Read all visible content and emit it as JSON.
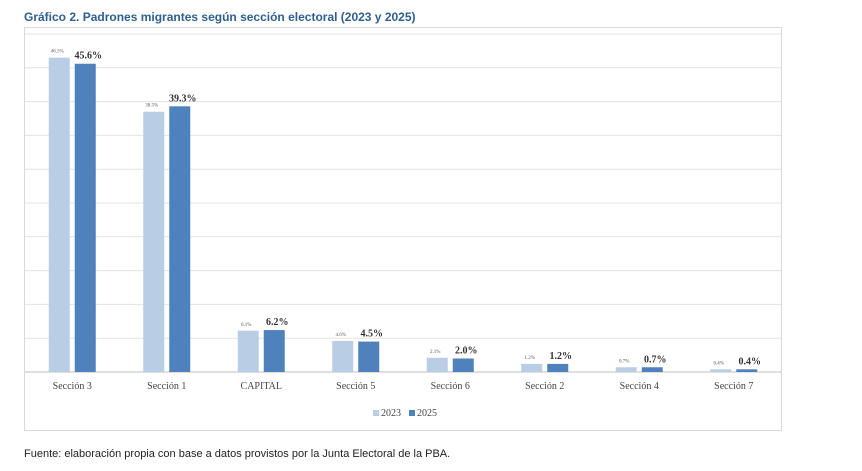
{
  "title": "Gráfico 2. Padrones migrantes según sección electoral (2023 y 2025)",
  "source": "Fuente: elaboración propia con base a datos provistos por la Junta Electoral de la PBA.",
  "chart_data": {
    "type": "bar",
    "categories": [
      "Sección 3",
      "Sección 1",
      "CAPITAL",
      "Sección 5",
      "Sección 6",
      "Sección 2",
      "Sección 4",
      "Sección 7"
    ],
    "series": [
      {
        "name": "2023",
        "color": "#b9cde5",
        "values": [
          46.5,
          38.5,
          6.1,
          4.6,
          2.1,
          1.2,
          0.7,
          0.4
        ],
        "labels": [
          "46.5%",
          "38.5%",
          "6.1%",
          "4.6%",
          "2.1%",
          "1.2%",
          "0.7%",
          "0.4%"
        ]
      },
      {
        "name": "2025",
        "color": "#4f81bd",
        "values": [
          45.6,
          39.3,
          6.2,
          4.5,
          2.0,
          1.2,
          0.7,
          0.4
        ],
        "labels": [
          "45.6%",
          "39.3%",
          "6.2%",
          "4.5%",
          "2.0%",
          "1.2%",
          "0.7%",
          "0.4%"
        ]
      }
    ],
    "ylim": [
      0,
      50
    ],
    "grid": true,
    "legend": "bottom-center",
    "xlabel": "",
    "ylabel": ""
  }
}
